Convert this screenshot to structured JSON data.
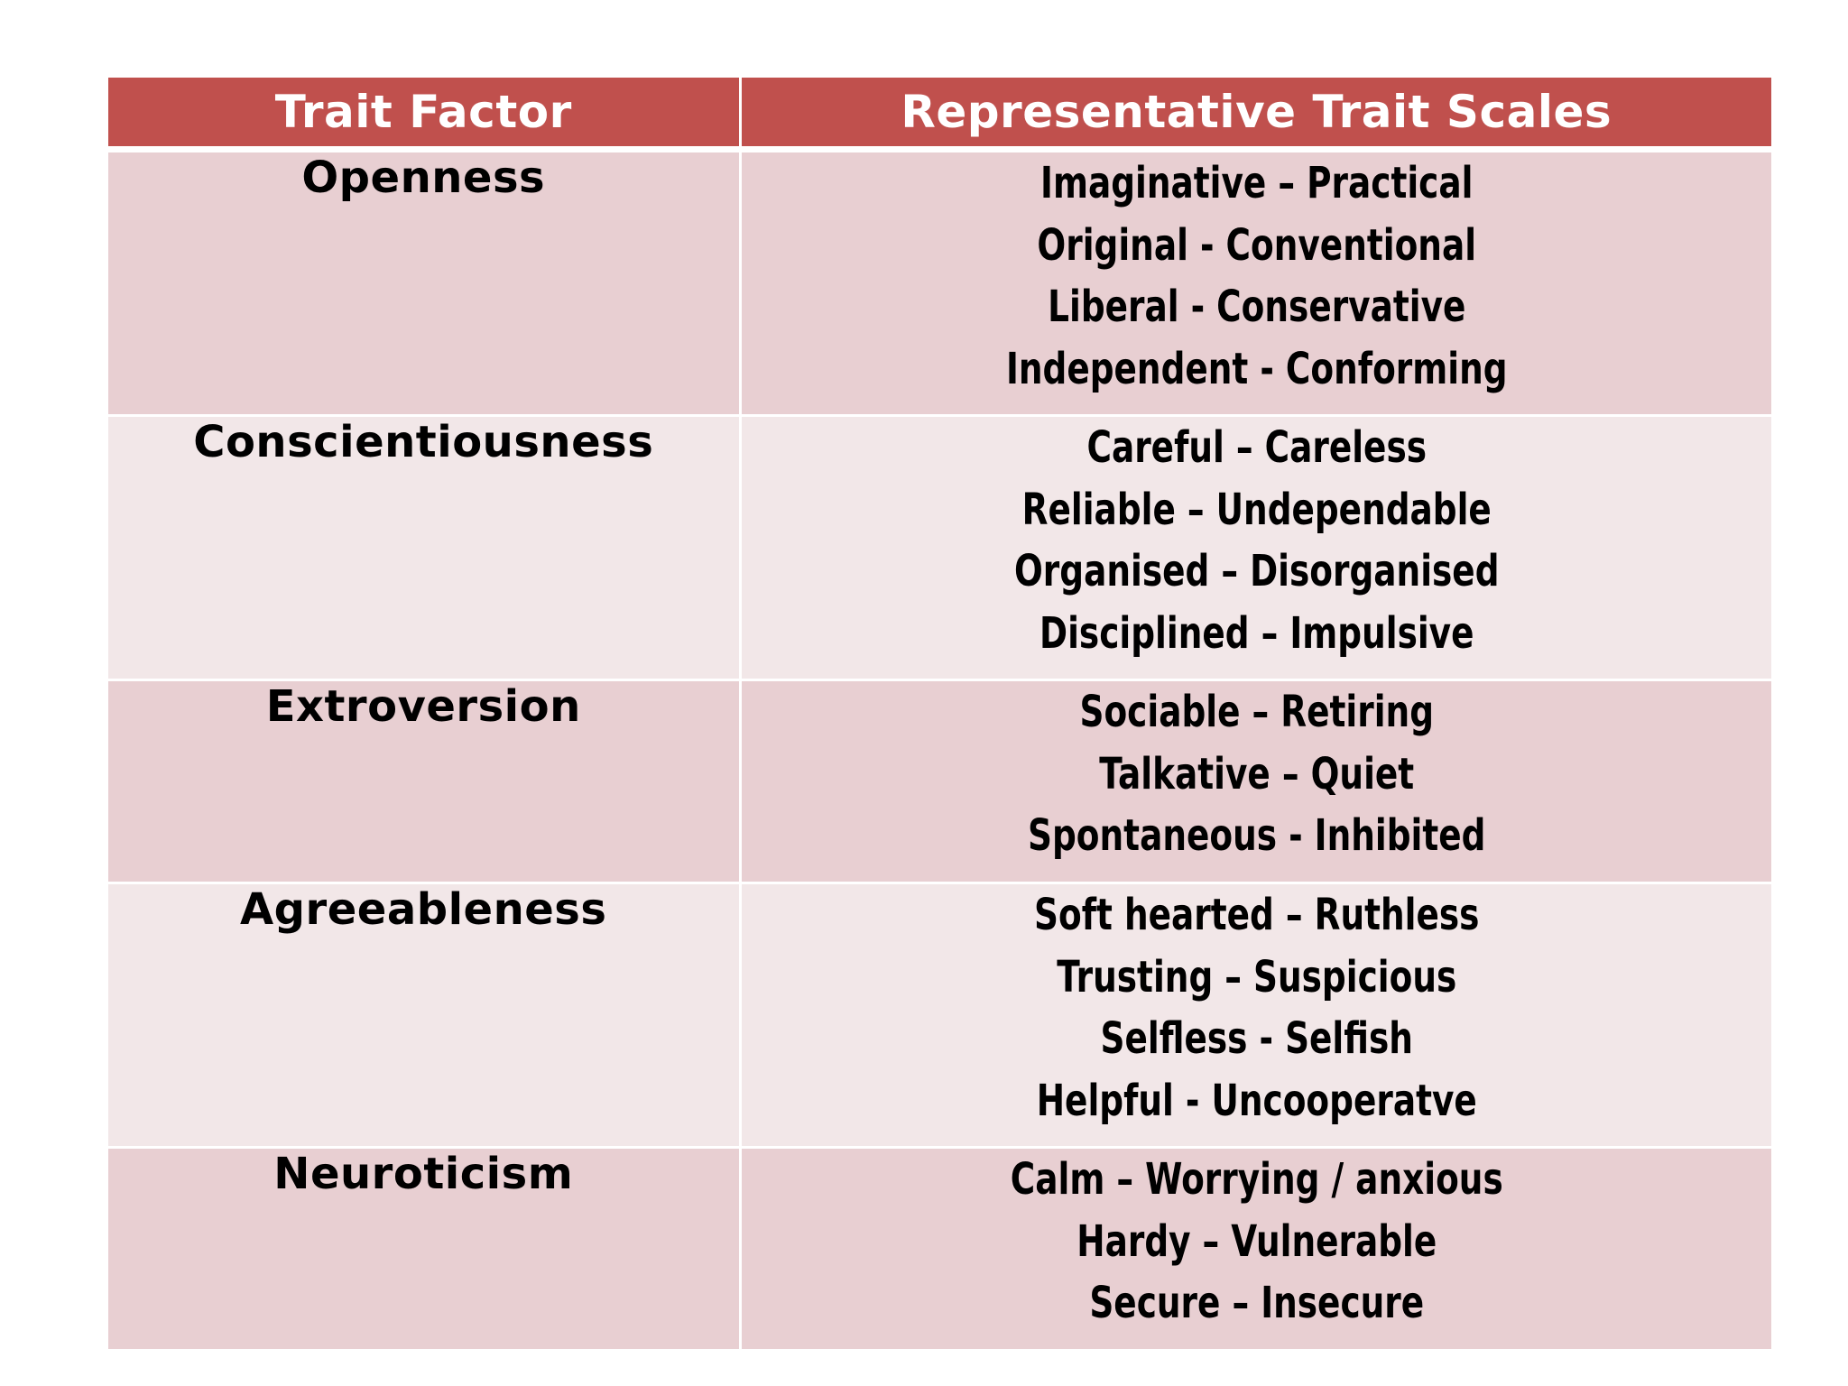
{
  "table": {
    "headers": {
      "factor": "Trait Factor",
      "scales": "Representative Trait Scales"
    },
    "rows": [
      {
        "factor": "Openness",
        "scales": [
          "Imaginative – Practical",
          "Original - Conventional",
          "Liberal - Conservative",
          "Independent - Conforming"
        ]
      },
      {
        "factor": "Conscientiousness",
        "scales": [
          "Careful – Careless",
          "Reliable – Undependable",
          "Organised – Disorganised",
          "Disciplined – Impulsive"
        ]
      },
      {
        "factor": "Extroversion",
        "scales": [
          "Sociable – Retiring",
          "Talkative – Quiet",
          "Spontaneous - Inhibited"
        ]
      },
      {
        "factor": "Agreeableness",
        "scales": [
          "Soft hearted – Ruthless",
          "Trusting – Suspicious",
          "Selfless - Selfish",
          "Helpful - Uncooperatve"
        ]
      },
      {
        "factor": "Neuroticism",
        "scales": [
          "Calm – Worrying / anxious",
          "Hardy – Vulnerable",
          "Secure – Insecure"
        ]
      }
    ]
  },
  "colors": {
    "header_bg": "#c0504d",
    "header_text": "#ffffff",
    "row_dark": "#e8cfd2",
    "row_light": "#f2e7e8"
  }
}
